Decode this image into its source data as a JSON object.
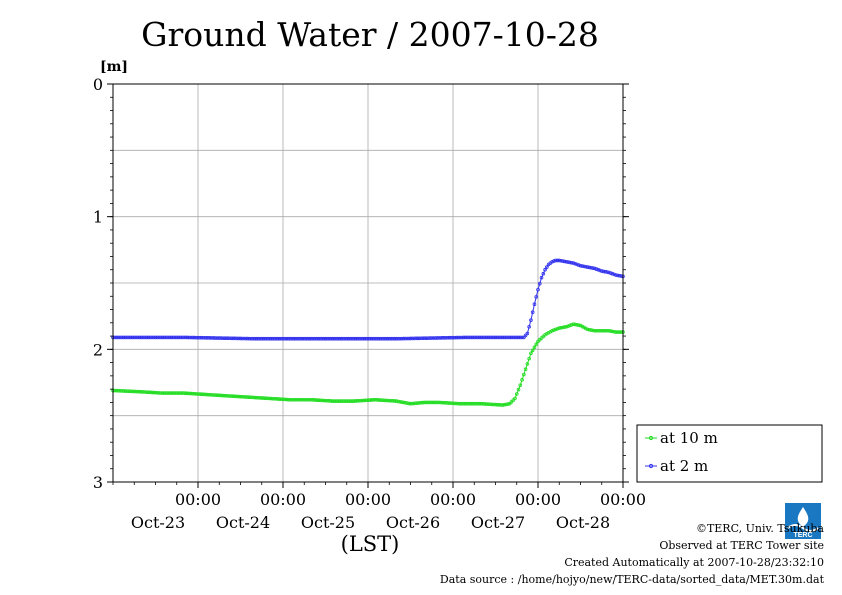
{
  "chart_data": {
    "type": "line",
    "title": "Ground Water / 2007-10-28",
    "ylabel_unit": "[m]",
    "xlabel": "(LST)",
    "y_axis": {
      "inverted": true,
      "range": [
        0,
        3
      ],
      "ticks": [
        "0",
        "1",
        "2",
        "3"
      ]
    },
    "x_axis": {
      "range_hours": [
        0,
        144
      ],
      "ticks": [
        {
          "time": "00:00",
          "date": "Oct-23"
        },
        {
          "time": "00:00",
          "date": "Oct-24"
        },
        {
          "time": "00:00",
          "date": "Oct-25"
        },
        {
          "time": "00:00",
          "date": "Oct-26"
        },
        {
          "time": "00:00",
          "date": "Oct-27"
        },
        {
          "time": "00:00",
          "date": "Oct-28"
        }
      ]
    },
    "grid": true,
    "legend_position": "right",
    "series": [
      {
        "name": "at 10 m",
        "color": "#22dd22",
        "points": [
          [
            0,
            2.31
          ],
          [
            8,
            2.32
          ],
          [
            14,
            2.33
          ],
          [
            20,
            2.33
          ],
          [
            26,
            2.34
          ],
          [
            32,
            2.35
          ],
          [
            38,
            2.36
          ],
          [
            44,
            2.37
          ],
          [
            50,
            2.38
          ],
          [
            56,
            2.38
          ],
          [
            62,
            2.39
          ],
          [
            68,
            2.39
          ],
          [
            74,
            2.38
          ],
          [
            80,
            2.39
          ],
          [
            84,
            2.41
          ],
          [
            88,
            2.4
          ],
          [
            92,
            2.4
          ],
          [
            98,
            2.41
          ],
          [
            104,
            2.41
          ],
          [
            110,
            2.42
          ],
          [
            112,
            2.41
          ],
          [
            113.5,
            2.37
          ],
          [
            115,
            2.27
          ],
          [
            116.5,
            2.15
          ],
          [
            118,
            2.03
          ],
          [
            120,
            1.94
          ],
          [
            122,
            1.89
          ],
          [
            124,
            1.86
          ],
          [
            126,
            1.84
          ],
          [
            128,
            1.83
          ],
          [
            130,
            1.81
          ],
          [
            132,
            1.82
          ],
          [
            134,
            1.85
          ],
          [
            136,
            1.86
          ],
          [
            138,
            1.86
          ],
          [
            140,
            1.86
          ],
          [
            142,
            1.87
          ],
          [
            144,
            1.87
          ]
        ]
      },
      {
        "name": "at 2 m",
        "color": "#3333ee",
        "points": [
          [
            0,
            1.91
          ],
          [
            20,
            1.91
          ],
          [
            40,
            1.92
          ],
          [
            60,
            1.92
          ],
          [
            80,
            1.92
          ],
          [
            100,
            1.91
          ],
          [
            116,
            1.91
          ],
          [
            117,
            1.88
          ],
          [
            118,
            1.78
          ],
          [
            119,
            1.66
          ],
          [
            120,
            1.55
          ],
          [
            121,
            1.46
          ],
          [
            122,
            1.4
          ],
          [
            123,
            1.36
          ],
          [
            124,
            1.34
          ],
          [
            125,
            1.33
          ],
          [
            126,
            1.33
          ],
          [
            128,
            1.34
          ],
          [
            130,
            1.35
          ],
          [
            132,
            1.37
          ],
          [
            134,
            1.38
          ],
          [
            136,
            1.39
          ],
          [
            138,
            1.41
          ],
          [
            140,
            1.42
          ],
          [
            142,
            1.44
          ],
          [
            144,
            1.45
          ]
        ]
      }
    ]
  },
  "credits": {
    "copyright": "©TERC, Univ. Tsukuba",
    "observed": "Observed at TERC Tower site",
    "created": "Created Automatically at 2007-10-28/23:32:10",
    "source": "Data source : /home/hojyo/new/TERC-data/sorted_data/MET.30m.dat"
  },
  "logo": {
    "text": "TERC",
    "color": "#1a78c2"
  }
}
